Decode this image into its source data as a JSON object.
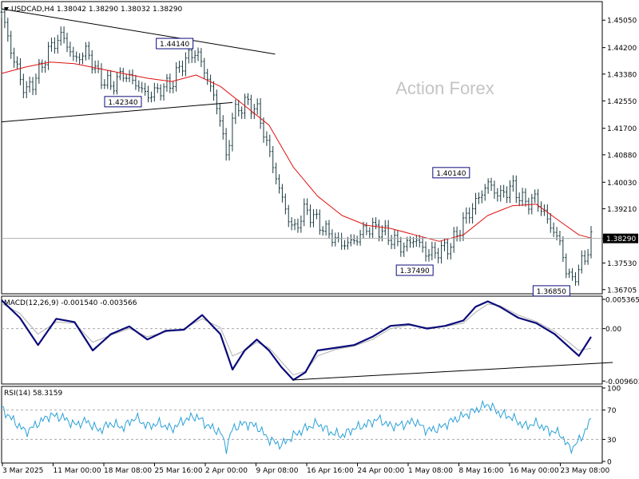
{
  "header": {
    "symbol_line": "USDCAD,H4  1.38042 1.38290 1.38032 1.38290"
  },
  "watermark": "Action Forex",
  "colors": {
    "price_bars": "#1a3a40",
    "moving_average": "#e01010",
    "macd_line": "#0b0b7a",
    "signal_line": "#b0b0b0",
    "rsi_line": "#2aa0d8",
    "trendline": "#000000",
    "grid_dash": "#aaaaaa"
  },
  "chart_data": [
    {
      "type": "candlestick",
      "name": "price",
      "y_ticks": [
        "1.45050",
        "1.44200",
        "1.43380",
        "1.42550",
        "1.41700",
        "1.40880",
        "1.40030",
        "1.39210",
        "1.38290",
        "1.37530",
        "1.36705"
      ],
      "ylim": [
        1.366,
        1.456
      ],
      "current_price": "1.38290",
      "annotations": [
        {
          "label": "1.44140",
          "value": 1.4414,
          "at": "1 Apr"
        },
        {
          "label": "1.42340",
          "value": 1.4234,
          "at": "21 Mar"
        },
        {
          "label": "1.40140",
          "value": 1.4014,
          "at": "7 May"
        },
        {
          "label": "1.37490",
          "value": 1.3749,
          "at": "1 May"
        },
        {
          "label": "1.36850",
          "value": 1.3685,
          "at": "21 May"
        }
      ],
      "x_labels": [
        "3 Mar 2025",
        "11 Mar 00:00",
        "18 Mar 08:00",
        "25 Mar 16:00",
        "2 Apr 00:00",
        "9 Apr 08:00",
        "16 Apr 16:00",
        "24 Apr 00:00",
        "1 May 08:00",
        "8 May 16:00",
        "16 May 00:00",
        "23 May 08:00"
      ],
      "close_path": [
        [
          0,
          1.453
        ],
        [
          2,
          1.438
        ],
        [
          4,
          1.428
        ],
        [
          6,
          1.434
        ],
        [
          8,
          1.442
        ],
        [
          10,
          1.446
        ],
        [
          12,
          1.438
        ],
        [
          14,
          1.441
        ],
        [
          16,
          1.433
        ],
        [
          18,
          1.43
        ],
        [
          20,
          1.434
        ],
        [
          22,
          1.431
        ],
        [
          24,
          1.427
        ],
        [
          26,
          1.429
        ],
        [
          28,
          1.431
        ],
        [
          30,
          1.438
        ],
        [
          32,
          1.441
        ],
        [
          34,
          1.432
        ],
        [
          36,
          1.42
        ],
        [
          37,
          1.407
        ],
        [
          38,
          1.421
        ],
        [
          40,
          1.425
        ],
        [
          42,
          1.423
        ],
        [
          44,
          1.41
        ],
        [
          46,
          1.396
        ],
        [
          48,
          1.385
        ],
        [
          50,
          1.392
        ],
        [
          52,
          1.388
        ],
        [
          54,
          1.384
        ],
        [
          56,
          1.381
        ],
        [
          58,
          1.382
        ],
        [
          60,
          1.386
        ],
        [
          62,
          1.386
        ],
        [
          64,
          1.383
        ],
        [
          66,
          1.38
        ],
        [
          68,
          1.383
        ],
        [
          70,
          1.378
        ],
        [
          72,
          1.379
        ],
        [
          74,
          1.381
        ],
        [
          76,
          1.388
        ],
        [
          78,
          1.394
        ],
        [
          80,
          1.4
        ],
        [
          82,
          1.396
        ],
        [
          84,
          1.399
        ],
        [
          86,
          1.394
        ],
        [
          88,
          1.395
        ],
        [
          90,
          1.388
        ],
        [
          92,
          1.381
        ],
        [
          93,
          1.372
        ],
        [
          94,
          1.37
        ],
        [
          96,
          1.377
        ],
        [
          97,
          1.3829
        ]
      ],
      "ma_path": [
        [
          0,
          1.434
        ],
        [
          4,
          1.436
        ],
        [
          8,
          1.4375
        ],
        [
          12,
          1.437
        ],
        [
          16,
          1.4355
        ],
        [
          20,
          1.434
        ],
        [
          24,
          1.4325
        ],
        [
          28,
          1.4315
        ],
        [
          32,
          1.4335
        ],
        [
          36,
          1.43
        ],
        [
          40,
          1.424
        ],
        [
          44,
          1.418
        ],
        [
          48,
          1.405
        ],
        [
          52,
          1.396
        ],
        [
          56,
          1.39
        ],
        [
          60,
          1.387
        ],
        [
          64,
          1.386
        ],
        [
          68,
          1.384
        ],
        [
          72,
          1.382
        ],
        [
          76,
          1.384
        ],
        [
          80,
          1.39
        ],
        [
          84,
          1.393
        ],
        [
          88,
          1.3935
        ],
        [
          92,
          1.388
        ],
        [
          95,
          1.384
        ],
        [
          97,
          1.383
        ]
      ],
      "trendlines": [
        {
          "from": [
            0,
            1.454
          ],
          "to": [
            45,
            1.44
          ]
        },
        {
          "from": [
            0,
            1.419
          ],
          "to": [
            38,
            1.425
          ]
        }
      ]
    },
    {
      "type": "line",
      "name": "MACD(12,26,9)",
      "label": "MACD(12,26,9) -0.001540 -0.003566",
      "y_ticks": [
        "0.005365",
        "0.00",
        "-0.009601"
      ],
      "ylim": [
        -0.01,
        0.0058
      ],
      "zero_line": 0,
      "macd_path": [
        [
          0,
          0.0052
        ],
        [
          3,
          0.002
        ],
        [
          6,
          -0.003
        ],
        [
          9,
          0.0018
        ],
        [
          12,
          0.0012
        ],
        [
          15,
          -0.004
        ],
        [
          18,
          -0.001
        ],
        [
          21,
          0.0004
        ],
        [
          24,
          -0.002
        ],
        [
          27,
          -0.0004
        ],
        [
          30,
          -0.0002
        ],
        [
          33,
          0.0025
        ],
        [
          36,
          -0.001
        ],
        [
          38,
          -0.0075
        ],
        [
          40,
          -0.004
        ],
        [
          42,
          -0.002
        ],
        [
          44,
          -0.004
        ],
        [
          46,
          -0.007
        ],
        [
          48,
          -0.0094
        ],
        [
          50,
          -0.008
        ],
        [
          52,
          -0.004
        ],
        [
          55,
          -0.0035
        ],
        [
          58,
          -0.003
        ],
        [
          61,
          -0.0015
        ],
        [
          64,
          0.0005
        ],
        [
          67,
          0.0008
        ],
        [
          70,
          0.0
        ],
        [
          73,
          0.0005
        ],
        [
          76,
          0.0015
        ],
        [
          78,
          0.004
        ],
        [
          80,
          0.005
        ],
        [
          82,
          0.004
        ],
        [
          85,
          0.002
        ],
        [
          88,
          0.001
        ],
        [
          91,
          -0.001
        ],
        [
          93,
          -0.003
        ],
        [
          95,
          -0.005
        ],
        [
          97,
          -0.0015
        ]
      ],
      "signal_path": [
        [
          0,
          0.0046
        ],
        [
          3,
          0.0028
        ],
        [
          6,
          -0.001
        ],
        [
          9,
          0.0012
        ],
        [
          12,
          0.001
        ],
        [
          15,
          -0.0025
        ],
        [
          18,
          -0.0012
        ],
        [
          21,
          0.0
        ],
        [
          24,
          -0.0015
        ],
        [
          27,
          -0.0006
        ],
        [
          30,
          0.0
        ],
        [
          33,
          0.0018
        ],
        [
          36,
          0.0002
        ],
        [
          38,
          -0.005
        ],
        [
          40,
          -0.004
        ],
        [
          42,
          -0.0025
        ],
        [
          44,
          -0.0035
        ],
        [
          46,
          -0.006
        ],
        [
          48,
          -0.0085
        ],
        [
          50,
          -0.0078
        ],
        [
          52,
          -0.005
        ],
        [
          55,
          -0.0038
        ],
        [
          58,
          -0.0032
        ],
        [
          61,
          -0.002
        ],
        [
          64,
          0.0
        ],
        [
          67,
          0.0006
        ],
        [
          70,
          0.0002
        ],
        [
          73,
          0.0004
        ],
        [
          76,
          0.001
        ],
        [
          78,
          0.003
        ],
        [
          80,
          0.0045
        ],
        [
          82,
          0.0042
        ],
        [
          85,
          0.0025
        ],
        [
          88,
          0.0013
        ],
        [
          91,
          -0.0005
        ],
        [
          93,
          -0.0022
        ],
        [
          95,
          -0.004
        ],
        [
          97,
          -0.0036
        ]
      ],
      "trendline": {
        "from": [
          48,
          -0.0094
        ],
        "to": [
          99,
          -0.0062
        ]
      }
    },
    {
      "type": "line",
      "name": "RSI(14)",
      "label": "RSI(14) 58.3159",
      "y_ticks": [
        "100",
        "70",
        "30",
        "0"
      ],
      "ylim": [
        0,
        100
      ],
      "levels": [
        70,
        30
      ],
      "rsi_path": [
        [
          0,
          72
        ],
        [
          2,
          55
        ],
        [
          4,
          40
        ],
        [
          6,
          52
        ],
        [
          8,
          63
        ],
        [
          10,
          60
        ],
        [
          12,
          50
        ],
        [
          14,
          55
        ],
        [
          16,
          42
        ],
        [
          18,
          52
        ],
        [
          20,
          46
        ],
        [
          22,
          60
        ],
        [
          24,
          48
        ],
        [
          26,
          52
        ],
        [
          28,
          44
        ],
        [
          30,
          56
        ],
        [
          32,
          62
        ],
        [
          34,
          48
        ],
        [
          36,
          40
        ],
        [
          37,
          18
        ],
        [
          38,
          45
        ],
        [
          40,
          52
        ],
        [
          42,
          48
        ],
        [
          44,
          30
        ],
        [
          46,
          22
        ],
        [
          48,
          35
        ],
        [
          50,
          45
        ],
        [
          52,
          52
        ],
        [
          54,
          40
        ],
        [
          56,
          35
        ],
        [
          58,
          45
        ],
        [
          60,
          50
        ],
        [
          62,
          58
        ],
        [
          64,
          48
        ],
        [
          66,
          50
        ],
        [
          68,
          55
        ],
        [
          70,
          42
        ],
        [
          72,
          45
        ],
        [
          74,
          55
        ],
        [
          76,
          62
        ],
        [
          78,
          70
        ],
        [
          80,
          78
        ],
        [
          82,
          65
        ],
        [
          84,
          60
        ],
        [
          86,
          48
        ],
        [
          88,
          52
        ],
        [
          90,
          42
        ],
        [
          92,
          38
        ],
        [
          93,
          22
        ],
        [
          94,
          18
        ],
        [
          96,
          40
        ],
        [
          97,
          58
        ]
      ]
    }
  ]
}
